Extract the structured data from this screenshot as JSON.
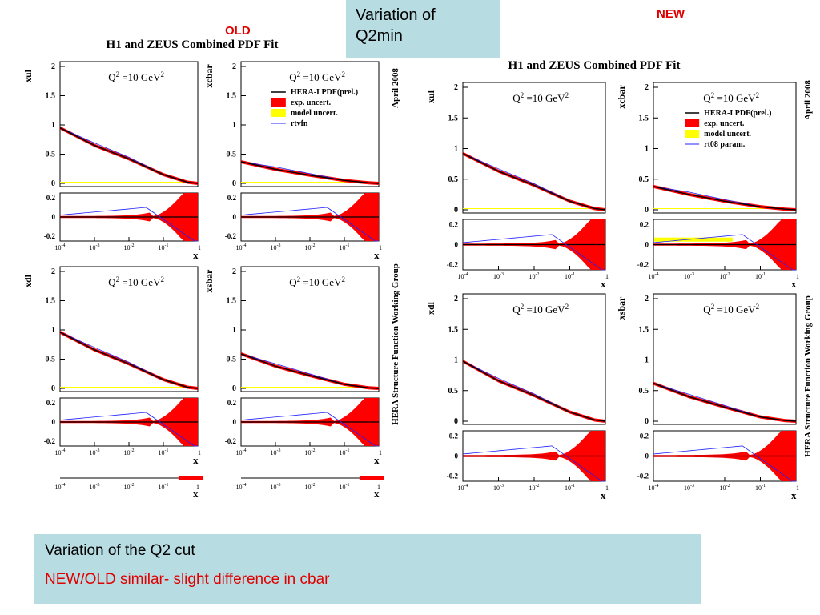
{
  "slide": {
    "title_line1": "Variation of",
    "title_line2": "Q2min",
    "old_tag": "OLD",
    "new_tag": "NEW",
    "summary_line1": "Variation of  the Q2 cut",
    "summary_line2": "NEW/OLD similar- slight difference in cbar"
  },
  "colors": {
    "central": "#000000",
    "exp_uncert": "#ff0000",
    "model_uncert": "#ffff00",
    "alt_curve": "#2020ff",
    "tag_red": "#e00000",
    "box_bg": "#b7dde3"
  },
  "chart_data": [
    {
      "panel": "old",
      "type": "line",
      "title": "H1 and ZEUS Combined PDF Fit",
      "side_top": "April 2008",
      "side_bottom": "HERA Structure Function Working Group",
      "x_scale": "log",
      "x_ticks": [
        "10-4",
        "10-3",
        "10-2",
        "10-1",
        "1"
      ],
      "xlabel": "x",
      "main_yticks": [
        "0",
        "0.5",
        "1",
        "1.5",
        "2"
      ],
      "ratio_yticks": [
        "-0.2",
        "0",
        "0.2"
      ],
      "legend": [
        "HERA-I PDF(prel.)",
        "exp. uncert.",
        "model uncert.",
        "rtvfn"
      ],
      "subplots": [
        {
          "ylabel": "xul",
          "annotation": "Q2 =10 GeV2",
          "ylim": [
            0,
            2
          ],
          "x": [
            0.0001,
            0.001,
            0.01,
            0.1,
            0.5,
            1
          ],
          "central": [
            0.95,
            0.65,
            0.42,
            0.15,
            0.02,
            0.0
          ]
        },
        {
          "ylabel": "xcbar",
          "annotation": "Q2 =10 GeV2",
          "ylim": [
            0,
            2
          ],
          "x": [
            0.0001,
            0.001,
            0.01,
            0.1,
            0.5,
            1
          ],
          "central": [
            0.37,
            0.24,
            0.14,
            0.05,
            0.01,
            0.0
          ]
        },
        {
          "ylabel": "xdl",
          "annotation": "Q2 =10 GeV2",
          "ylim": [
            0,
            2
          ],
          "x": [
            0.0001,
            0.001,
            0.01,
            0.1,
            0.5,
            1
          ],
          "central": [
            0.96,
            0.66,
            0.42,
            0.15,
            0.02,
            0.0
          ]
        },
        {
          "ylabel": "xsbar",
          "annotation": "Q2 =10 GeV2",
          "ylim": [
            0,
            2
          ],
          "x": [
            0.0001,
            0.001,
            0.01,
            0.1,
            0.5,
            1
          ],
          "central": [
            0.59,
            0.38,
            0.22,
            0.07,
            0.01,
            0.0
          ]
        }
      ]
    },
    {
      "panel": "new",
      "type": "line",
      "title": "H1 and ZEUS Combined PDF Fit",
      "side_top": "April 2008",
      "side_bottom": "HERA Structure Function Working Group",
      "x_scale": "log",
      "x_ticks": [
        "10-4",
        "10-3",
        "10-2",
        "10-1",
        "1"
      ],
      "xlabel": "x",
      "main_yticks": [
        "0",
        "0.5",
        "1",
        "1.5",
        "2"
      ],
      "ratio_yticks": [
        "-0.2",
        "0",
        "0.2"
      ],
      "legend": [
        "HERA-I PDF(prel.)",
        "exp. uncert.",
        "model uncert.",
        "rt08 param."
      ],
      "subplots": [
        {
          "ylabel": "xul",
          "annotation": "Q2 =10 GeV2",
          "ylim": [
            0,
            2
          ],
          "x": [
            0.0001,
            0.001,
            0.01,
            0.1,
            0.5,
            1
          ],
          "central": [
            0.92,
            0.63,
            0.4,
            0.14,
            0.02,
            0.0
          ]
        },
        {
          "ylabel": "xcbar",
          "annotation": "Q2 =10 GeV2",
          "ylim": [
            0,
            2
          ],
          "x": [
            0.0001,
            0.001,
            0.01,
            0.1,
            0.5,
            1
          ],
          "central": [
            0.38,
            0.25,
            0.14,
            0.05,
            0.01,
            0.0
          ]
        },
        {
          "ylabel": "xdl",
          "annotation": "Q2 =10 GeV2",
          "ylim": [
            0,
            2
          ],
          "x": [
            0.0001,
            0.001,
            0.01,
            0.1,
            0.5,
            1
          ],
          "central": [
            0.98,
            0.66,
            0.42,
            0.15,
            0.02,
            0.0
          ]
        },
        {
          "ylabel": "xsbar",
          "annotation": "Q2 =10 GeV2",
          "ylim": [
            0,
            2
          ],
          "x": [
            0.0001,
            0.001,
            0.01,
            0.1,
            0.5,
            1
          ],
          "central": [
            0.62,
            0.4,
            0.23,
            0.07,
            0.01,
            0.0
          ]
        }
      ]
    }
  ]
}
